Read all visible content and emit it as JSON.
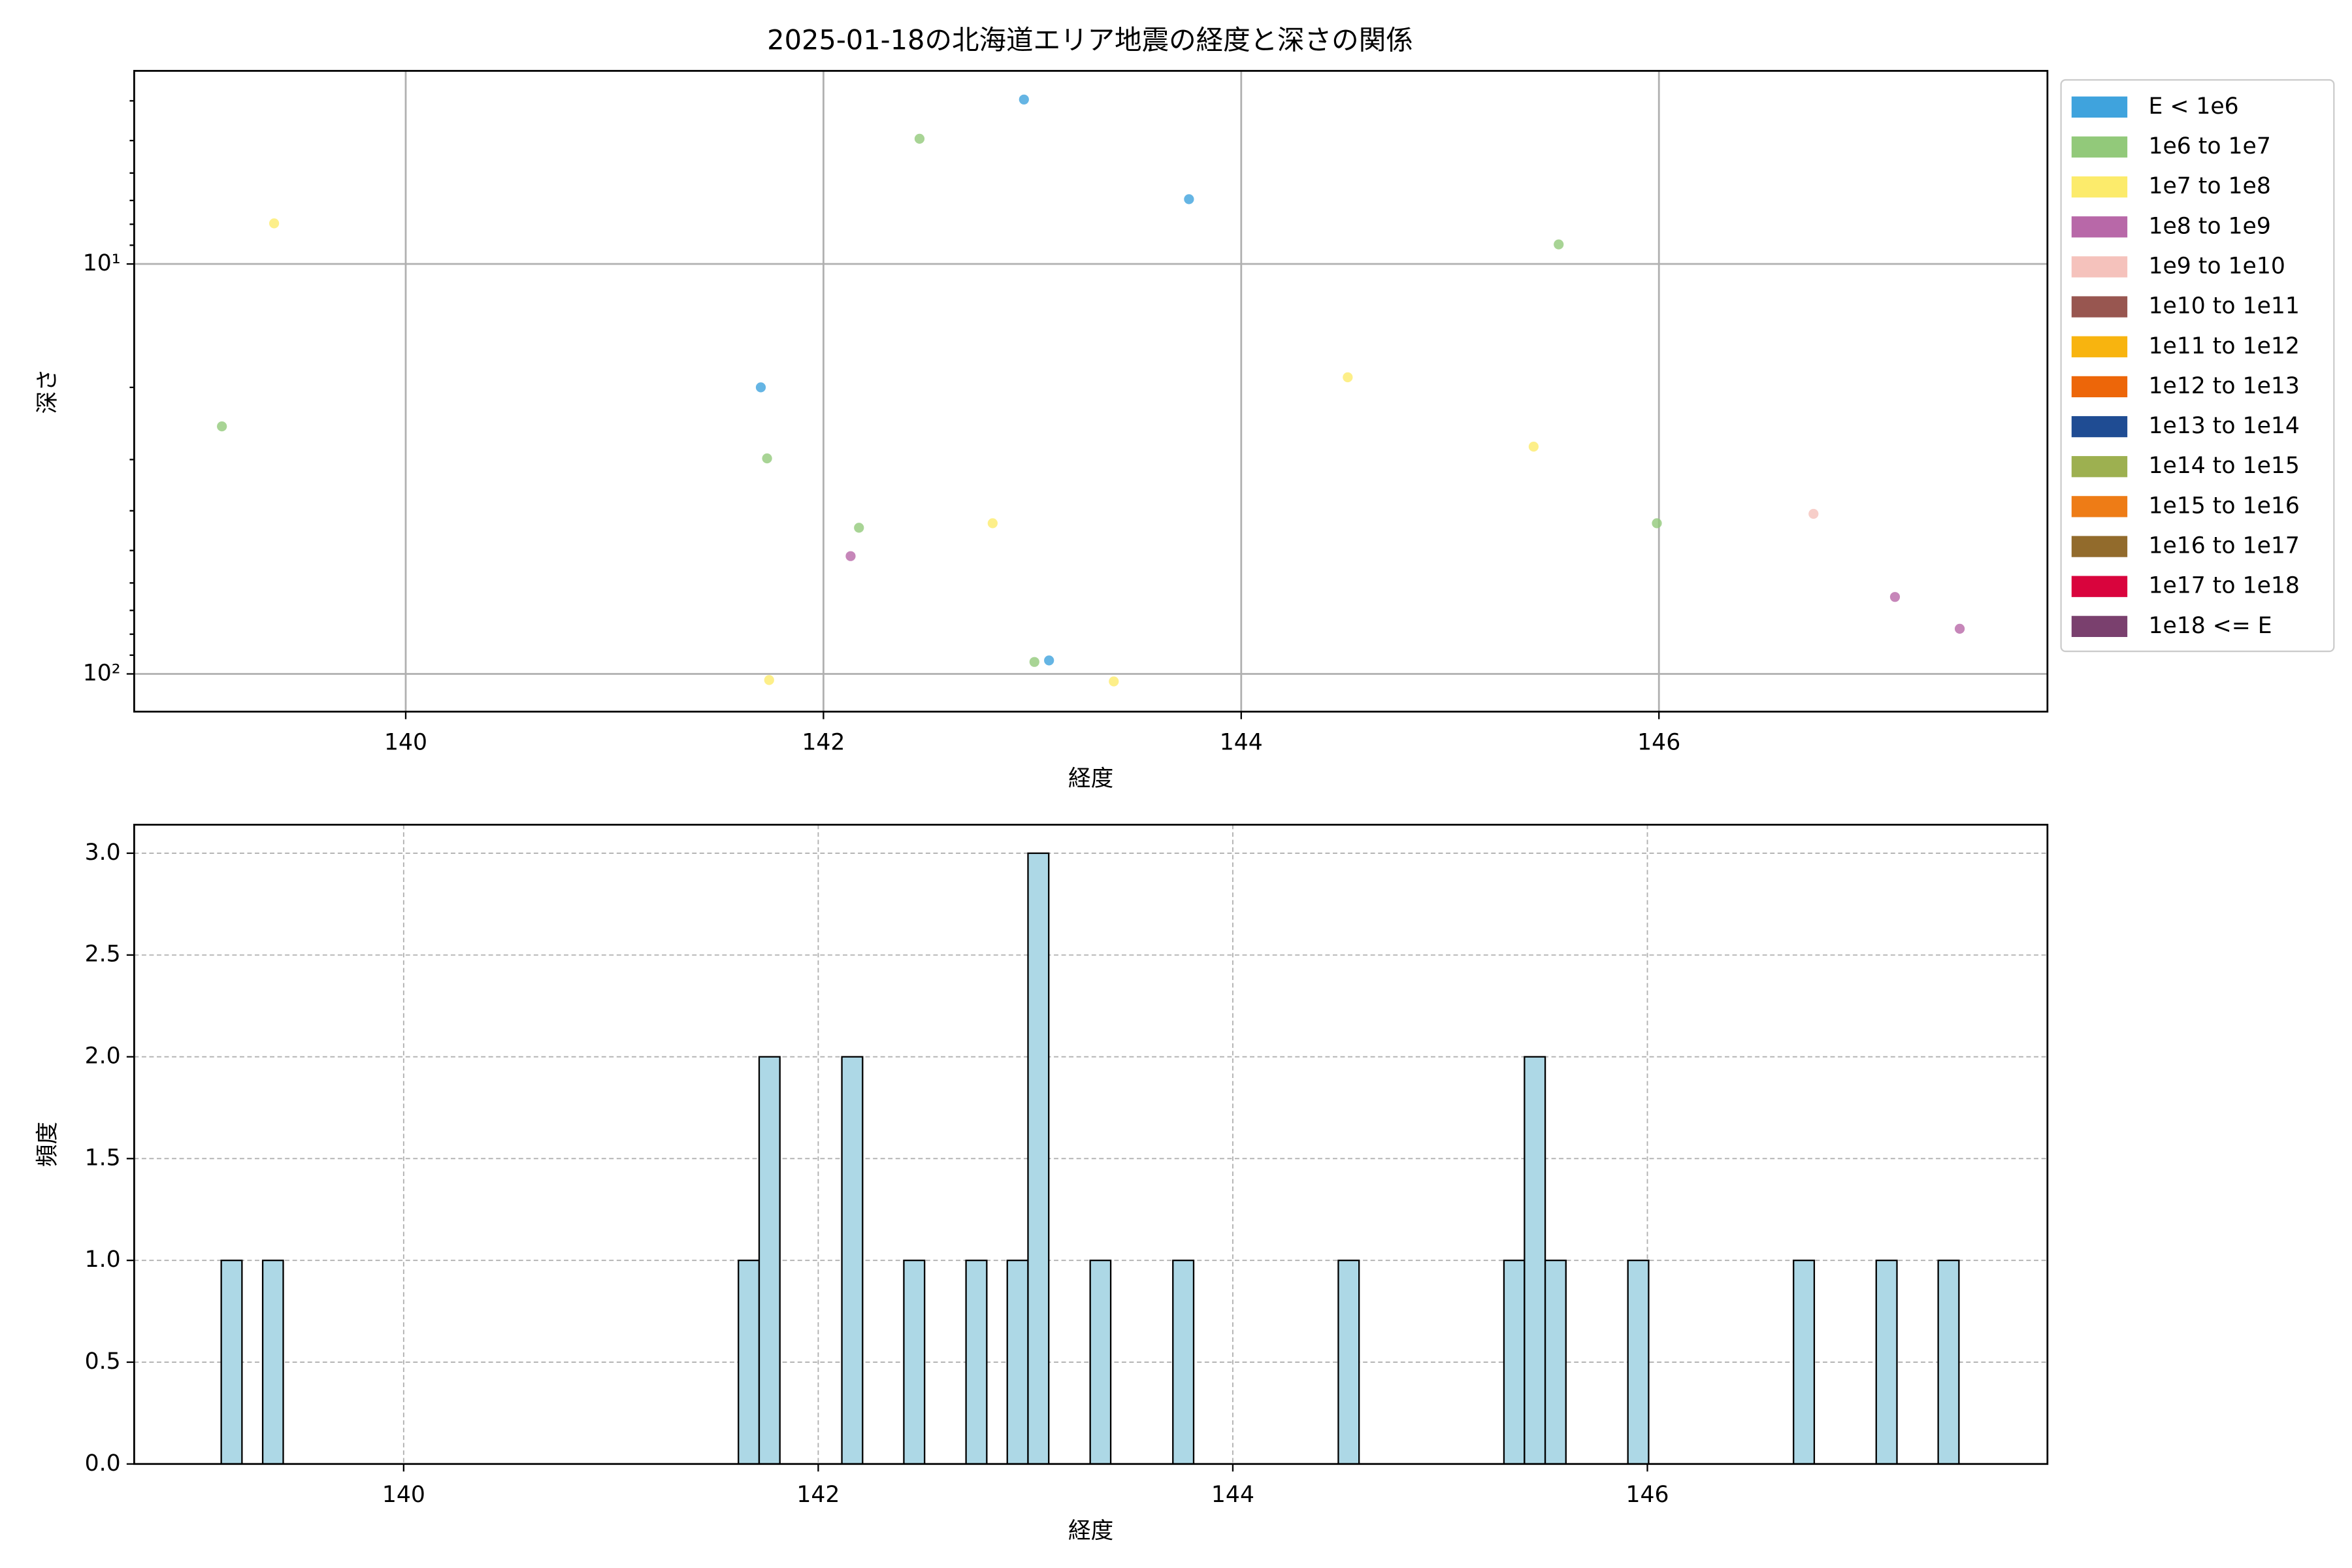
{
  "chart_data": [
    {
      "type": "scatter",
      "title": "2025-01-18の北海道エリア地震の経度と深さの関係",
      "x_label": "経度",
      "y_label": "深さ",
      "xlim": [
        138.7,
        147.86
      ],
      "xticks": [
        140,
        142,
        144,
        146
      ],
      "ylim": [
        3.38,
        123.6
      ],
      "y_scale": "log",
      "y_inverted": true,
      "yticks": [
        {
          "value": 10,
          "label": "10¹"
        },
        {
          "value": 100,
          "label": "10²"
        }
      ],
      "yminorticks": [
        4,
        5,
        6,
        7,
        8,
        9,
        20,
        30,
        40,
        50,
        60,
        70,
        80,
        90
      ],
      "grid": true,
      "legend": "outside-right",
      "series": [
        {
          "name": "E < 1e6",
          "color": "#3fa3dd",
          "x": [
            141.7,
            142.96,
            143.08,
            143.75
          ],
          "values": [
            20.0,
            3.97,
            92.7,
            6.95
          ]
        },
        {
          "name": "1e6 to 1e7",
          "color": "#92c97a",
          "x": [
            139.12,
            141.73,
            142.17,
            142.46,
            143.01,
            145.52,
            145.99
          ],
          "values": [
            24.9,
            29.8,
            44.0,
            4.95,
            93.5,
            8.96,
            42.9
          ]
        },
        {
          "name": "1e7 to 1e8",
          "color": "#fceb6b",
          "x": [
            139.37,
            141.74,
            142.81,
            143.39,
            144.51,
            145.4
          ],
          "values": [
            7.96,
            103.5,
            42.9,
            104.3,
            18.9,
            27.9
          ]
        },
        {
          "name": "1e8 to 1e9",
          "color": "#b868a8",
          "x": [
            142.13,
            147.13,
            147.44
          ],
          "values": [
            51.6,
            64.9,
            77.6
          ]
        },
        {
          "name": "1e9 to 1e10",
          "color": "#f5c2bc",
          "x": [
            146.74
          ],
          "values": [
            40.7
          ]
        },
        {
          "name": "1e10 to 1e11",
          "color": "#985650",
          "x": [],
          "values": []
        },
        {
          "name": "1e11 to 1e12",
          "color": "#f8b40f",
          "x": [],
          "values": []
        },
        {
          "name": "1e12 to 1e13",
          "color": "#ed6609",
          "x": [],
          "values": []
        },
        {
          "name": "1e13 to 1e14",
          "color": "#1f4c93",
          "x": [],
          "values": []
        },
        {
          "name": "1e14 to 1e15",
          "color": "#9db050",
          "x": [],
          "values": []
        },
        {
          "name": "1e15 to 1e16",
          "color": "#ee7c16",
          "x": [],
          "values": []
        },
        {
          "name": "1e16 to 1e17",
          "color": "#926b2c",
          "x": [],
          "values": []
        },
        {
          "name": "1e17 to 1e18",
          "color": "#d9043d",
          "x": [],
          "values": []
        },
        {
          "name": "1e18 <= E",
          "color": "#7a406e",
          "x": [],
          "values": []
        }
      ]
    },
    {
      "type": "histogram",
      "x_label": "経度",
      "y_label": "頻度",
      "color": "#add8e6",
      "edge_color": "#000000",
      "xlim": [
        138.7,
        147.93
      ],
      "xticks": [
        140,
        142,
        144,
        146
      ],
      "ylim": [
        0,
        3.14
      ],
      "yticks": [
        {
          "value": 0,
          "label": "0.0"
        },
        0.5,
        {
          "value": 1,
          "label": "1.0"
        },
        1.5,
        {
          "value": 2,
          "label": "2.0"
        },
        2.5,
        {
          "value": 3,
          "label": "3.0"
        }
      ],
      "grid": true,
      "bins": [
        139.12,
        139.22,
        139.32,
        139.419,
        139.519,
        139.619,
        139.719,
        139.819,
        139.918,
        140.018,
        140.118,
        140.218,
        140.318,
        140.417,
        140.517,
        140.617,
        140.717,
        140.817,
        140.916,
        141.016,
        141.116,
        141.216,
        141.316,
        141.415,
        141.515,
        141.615,
        141.715,
        141.815,
        141.914,
        142.014,
        142.114,
        142.214,
        142.314,
        142.413,
        142.513,
        142.613,
        142.713,
        142.813,
        142.912,
        143.012,
        143.112,
        143.212,
        143.312,
        143.411,
        143.511,
        143.611,
        143.711,
        143.811,
        143.91,
        144.01,
        144.11,
        144.21,
        144.31,
        144.409,
        144.509,
        144.609,
        144.709,
        144.809,
        144.908,
        145.008,
        145.108,
        145.208,
        145.308,
        145.407,
        145.507,
        145.607,
        145.707,
        145.807,
        145.906,
        146.006,
        146.106,
        146.206,
        146.306,
        146.405,
        146.505,
        146.605,
        146.705,
        146.805,
        146.904,
        147.004,
        147.104,
        147.204,
        147.304,
        147.403,
        147.503
      ],
      "counts": [
        1,
        0,
        1,
        0,
        0,
        0,
        0,
        0,
        0,
        0,
        0,
        0,
        0,
        0,
        0,
        0,
        0,
        0,
        0,
        0,
        0,
        0,
        0,
        0,
        0,
        1,
        2,
        0,
        0,
        0,
        2,
        0,
        0,
        1,
        0,
        0,
        1,
        0,
        1,
        3,
        0,
        0,
        1,
        0,
        0,
        0,
        1,
        0,
        0,
        0,
        0,
        0,
        0,
        0,
        1,
        0,
        0,
        0,
        0,
        0,
        0,
        0,
        1,
        2,
        1,
        0,
        0,
        0,
        1,
        0,
        0,
        0,
        0,
        0,
        0,
        0,
        1,
        0,
        0,
        0,
        1,
        0,
        0,
        1
      ]
    }
  ]
}
